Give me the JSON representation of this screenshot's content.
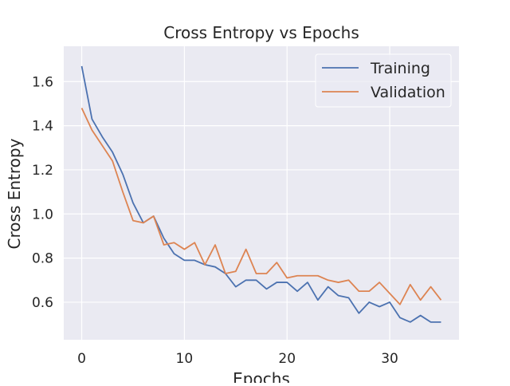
{
  "chart_data": {
    "type": "line",
    "title": "Cross Entropy vs Epochs",
    "xlabel": "Epochs",
    "ylabel": "Cross Entropy",
    "xlim": [
      -1.75,
      36.75
    ],
    "ylim": [
      0.43,
      1.76
    ],
    "xticks": [
      0,
      10,
      20,
      30
    ],
    "xtick_labels": [
      "0",
      "10",
      "20",
      "30"
    ],
    "yticks": [
      0.6,
      0.8,
      1.0,
      1.2,
      1.4,
      1.6
    ],
    "ytick_labels": [
      "0.6",
      "0.8",
      "1.0",
      "1.2",
      "1.4",
      "1.6"
    ],
    "grid": true,
    "legend_position": "top-right",
    "background_color": "#eaeaf2",
    "grid_color": "#ffffff",
    "x": [
      0,
      1,
      2,
      3,
      4,
      5,
      6,
      7,
      8,
      9,
      10,
      11,
      12,
      13,
      14,
      15,
      16,
      17,
      18,
      19,
      20,
      21,
      22,
      23,
      24,
      25,
      26,
      27,
      28,
      29,
      30,
      31,
      32,
      33,
      34,
      35
    ],
    "series": [
      {
        "name": "Training",
        "color": "#4c72b0",
        "values": [
          1.67,
          1.43,
          1.35,
          1.28,
          1.18,
          1.05,
          0.96,
          0.99,
          0.89,
          0.82,
          0.79,
          0.79,
          0.77,
          0.76,
          0.73,
          0.67,
          0.7,
          0.7,
          0.66,
          0.69,
          0.69,
          0.65,
          0.69,
          0.61,
          0.67,
          0.63,
          0.62,
          0.55,
          0.6,
          0.58,
          0.6,
          0.53,
          0.51,
          0.54,
          0.51,
          0.51
        ]
      },
      {
        "name": "Validation",
        "color": "#dd8452",
        "values": [
          1.48,
          1.38,
          1.31,
          1.24,
          1.1,
          0.97,
          0.96,
          0.99,
          0.86,
          0.87,
          0.84,
          0.87,
          0.77,
          0.86,
          0.73,
          0.74,
          0.84,
          0.73,
          0.73,
          0.78,
          0.71,
          0.72,
          0.72,
          0.72,
          0.7,
          0.69,
          0.7,
          0.65,
          0.65,
          0.69,
          0.64,
          0.59,
          0.68,
          0.61,
          0.67,
          0.61
        ]
      }
    ]
  }
}
